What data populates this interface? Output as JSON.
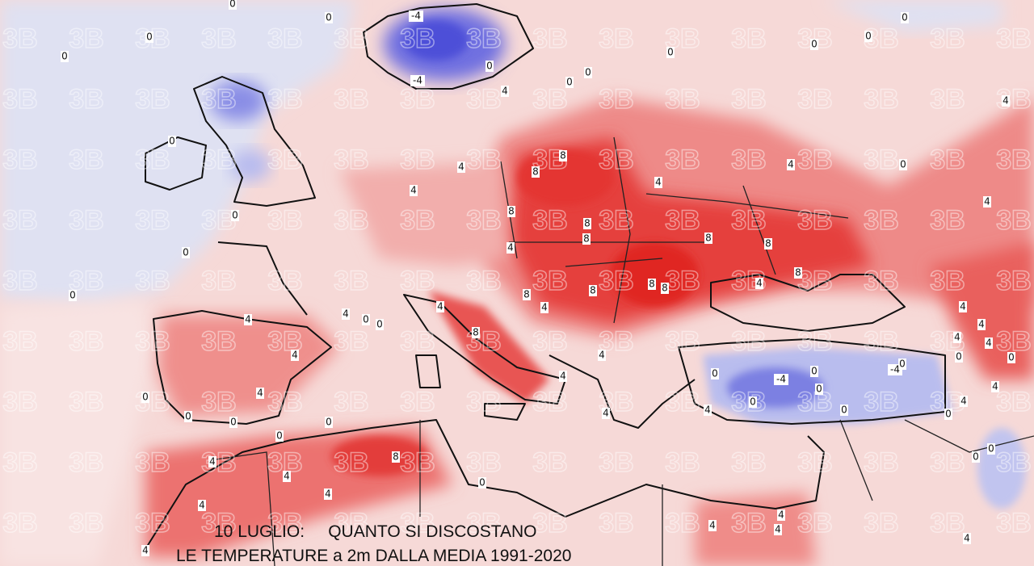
{
  "caption": {
    "line1": "10 LUGLIO:     QUANTO SI DISCOSTANO",
    "line2": "LE TEMPERATURE a 2m DALLA MEDIA 1991-2020"
  },
  "watermark": "3B",
  "contour_labels": [
    0,
    0,
    -4,
    0,
    0,
    -4,
    0,
    4,
    0,
    0,
    0,
    0,
    0,
    4,
    0,
    0,
    4,
    8,
    8,
    4,
    4,
    4,
    0,
    4,
    8,
    0,
    8,
    8,
    8,
    4,
    8,
    8,
    4,
    0,
    0,
    8,
    8,
    8,
    8,
    4,
    4,
    4,
    4,
    0,
    0,
    8,
    4,
    4,
    4,
    4,
    4,
    4,
    0,
    0,
    0,
    -4,
    0,
    -4,
    0,
    4,
    0,
    4,
    0,
    0,
    4,
    4,
    0,
    4,
    0,
    4,
    0,
    0,
    0,
    0,
    0,
    8,
    4,
    4,
    0,
    4,
    4,
    4,
    4,
    4,
    4,
    0,
    4
  ]
}
